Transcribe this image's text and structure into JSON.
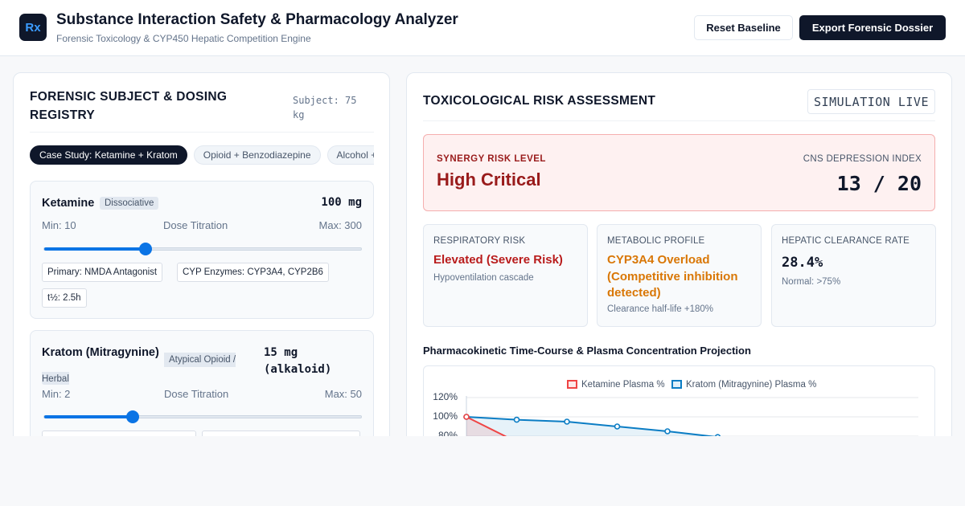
{
  "header": {
    "logo_text": "Rx",
    "title": "Substance Interaction Safety & Pharmacology Analyzer",
    "subtitle": "Forensic Toxicology & CYP450 Hepatic Competition Engine",
    "reset_label": "Reset Baseline",
    "export_label": "Export Forensic Dossier"
  },
  "registry": {
    "title": "FORENSIC SUBJECT & DOSING REGISTRY",
    "subject_weight": "Subject: 75 kg",
    "tabs": [
      {
        "label": "Case Study: Ketamine + Kratom",
        "active": true
      },
      {
        "label": "Opioid + Benzodiazepine",
        "active": false
      },
      {
        "label": "Alcohol + Benzodiazepine",
        "active": false
      }
    ],
    "drugs": [
      {
        "name": "Ketamine",
        "class": "Dissociative",
        "dose": "100 mg",
        "min": "Min: 10",
        "titration_label": "Dose Titration",
        "max": "Max: 300",
        "level": 0.32,
        "chips": [
          "Primary: NMDA Antagonist",
          "CYP Enzymes: CYP3A4, CYP2B6",
          "t½: 2.5h"
        ]
      },
      {
        "name": "Kratom (Mitragynine)",
        "class": "Atypical Opioid / Herbal",
        "dose": "15 mg (alkaloid)",
        "min": "Min: 2",
        "titration_label": "Dose Titration",
        "max": "Max: 50",
        "level": 0.28,
        "chips": [
          "",
          ""
        ]
      }
    ]
  },
  "assessment": {
    "title": "TOXICOLOGICAL RISK ASSESSMENT",
    "sim_status": "SIMULATION LIVE",
    "synergy_label": "SYNERGY RISK LEVEL",
    "synergy_value": "High Critical",
    "cns_label": "CNS DEPRESSION INDEX",
    "cns_value": "13 / 20",
    "metrics": [
      {
        "label": "RESPIRATORY RISK",
        "value": "Elevated (Severe Risk)",
        "sub": "Hypoventilation cascade",
        "color": "#b91c1c"
      },
      {
        "label": "METABOLIC PROFILE",
        "value": "CYP3A4 Overload (Competitive inhibition detected)",
        "sub": "Clearance half-life +180%",
        "color": "#d97706"
      },
      {
        "label": "HEPATIC CLEARANCE RATE",
        "value": "28.4%",
        "sub": "Normal: >75%",
        "color": "#0f172a"
      }
    ]
  },
  "chart_data": {
    "type": "line",
    "title": "Pharmacokinetic Time-Course & Plasma Concentration Projection",
    "ylabel": "",
    "yticks": [
      "120%",
      "100%",
      "80%"
    ],
    "ylim": [
      0,
      120
    ],
    "grid": true,
    "legend_position": "top-center",
    "series": [
      {
        "name": "Ketamine Plasma %",
        "color": "#ef4444",
        "values": [
          100,
          74
        ]
      },
      {
        "name": "Kratom (Mitragynine) Plasma %",
        "color": "#0b7dc4",
        "values": [
          100,
          97,
          95,
          90,
          85,
          79
        ]
      }
    ]
  }
}
